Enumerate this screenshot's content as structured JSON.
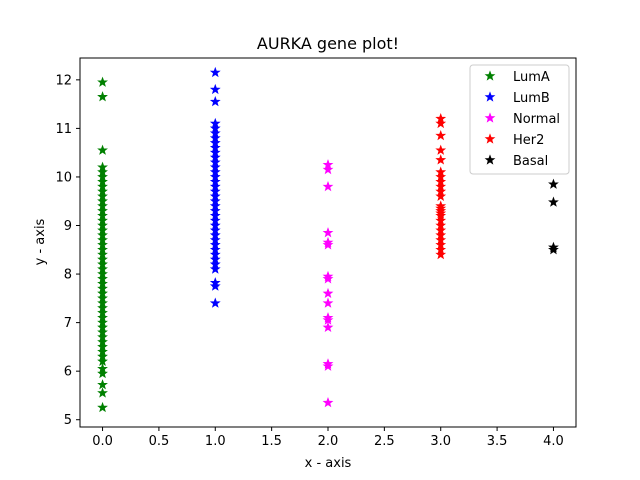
{
  "chart_data": {
    "type": "scatter",
    "title": "AURKA gene plot!",
    "xlabel": "x - axis",
    "ylabel": "y - axis",
    "xlim": [
      -0.2,
      4.2
    ],
    "ylim": [
      4.85,
      12.45
    ],
    "xticks": [
      0.0,
      0.5,
      1.0,
      1.5,
      2.0,
      2.5,
      3.0,
      3.5,
      4.0
    ],
    "xtick_labels": [
      "0.0",
      "0.5",
      "1.0",
      "1.5",
      "2.0",
      "2.5",
      "3.0",
      "3.5",
      "4.0"
    ],
    "yticks": [
      5,
      6,
      7,
      8,
      9,
      10,
      11,
      12
    ],
    "ytick_labels": [
      "5",
      "6",
      "7",
      "8",
      "9",
      "10",
      "11",
      "12"
    ],
    "grid": false,
    "legend_position": "top-right",
    "marker": "star",
    "series": [
      {
        "name": "LumA",
        "color": "#008000",
        "x": 0,
        "y": [
          5.25,
          5.55,
          5.72,
          5.95,
          6.05,
          6.2,
          6.3,
          6.4,
          6.5,
          6.6,
          6.7,
          6.8,
          6.9,
          7.0,
          7.1,
          7.2,
          7.3,
          7.4,
          7.5,
          7.6,
          7.7,
          7.8,
          7.9,
          8.0,
          8.1,
          8.2,
          8.3,
          8.4,
          8.5,
          8.6,
          8.7,
          8.8,
          8.9,
          9.0,
          9.1,
          9.2,
          9.3,
          9.4,
          9.5,
          9.6,
          9.7,
          9.8,
          9.9,
          10.0,
          10.1,
          10.2,
          10.55,
          11.65,
          11.95
        ]
      },
      {
        "name": "LumB",
        "color": "#0000ff",
        "x": 1,
        "y": [
          7.4,
          7.75,
          7.82,
          8.1,
          8.2,
          8.3,
          8.4,
          8.5,
          8.6,
          8.7,
          8.8,
          8.9,
          9.0,
          9.1,
          9.2,
          9.3,
          9.4,
          9.5,
          9.6,
          9.7,
          9.8,
          9.9,
          10.0,
          10.1,
          10.2,
          10.3,
          10.4,
          10.5,
          10.6,
          10.7,
          10.8,
          10.9,
          11.0,
          11.1,
          11.55,
          11.8,
          12.15
        ]
      },
      {
        "name": "Normal",
        "color": "#ff00ff",
        "x": 2,
        "y": [
          5.35,
          6.1,
          6.15,
          6.9,
          7.05,
          7.1,
          7.4,
          7.6,
          7.9,
          7.95,
          8.6,
          8.65,
          8.85,
          9.8,
          10.15,
          10.25
        ]
      },
      {
        "name": "Her2",
        "color": "#ff0000",
        "x": 3,
        "y": [
          8.4,
          8.5,
          8.6,
          8.7,
          8.8,
          8.9,
          9.0,
          9.1,
          9.2,
          9.25,
          9.3,
          9.35,
          9.4,
          9.6,
          9.7,
          9.8,
          9.9,
          10.0,
          10.1,
          10.35,
          10.55,
          10.85,
          11.1,
          11.2
        ]
      },
      {
        "name": "Basal",
        "color": "#000000",
        "x": 4,
        "y": [
          8.5,
          8.55,
          9.48,
          9.85
        ]
      }
    ]
  }
}
